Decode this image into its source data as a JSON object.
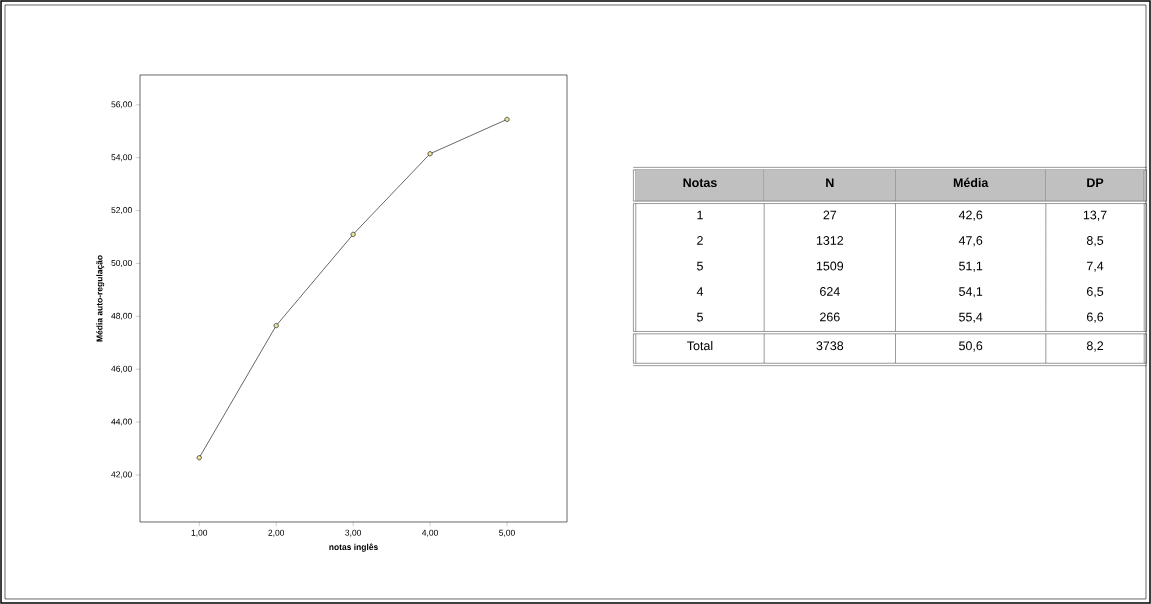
{
  "chart_data": [
    {
      "type": "line",
      "xlabel": "notas inglês",
      "ylabel": "Média auto-regulação",
      "x": [
        1,
        2,
        3,
        4,
        5
      ],
      "series": [
        {
          "color": "#000000",
          "values": [
            42.65,
            47.65,
            51.1,
            54.15,
            55.45
          ]
        }
      ],
      "marker": "circle",
      "line_style": "solid",
      "xlim": [
        0.23,
        5.78
      ],
      "ylim": [
        40.22,
        57.13
      ],
      "xticks": [
        {
          "value": 1,
          "label": "1,00"
        },
        {
          "value": 2,
          "label": "2,00"
        },
        {
          "value": 3,
          "label": "3,00"
        },
        {
          "value": 4,
          "label": "4,00"
        },
        {
          "value": 5,
          "label": "5,00"
        }
      ],
      "yticks": [
        {
          "value": 42,
          "label": "42,00"
        },
        {
          "value": 44,
          "label": "44,00"
        },
        {
          "value": 46,
          "label": "46,00"
        },
        {
          "value": 48,
          "label": "48,00"
        },
        {
          "value": 50,
          "label": "50,00"
        },
        {
          "value": 52,
          "label": "52,00"
        },
        {
          "value": 54,
          "label": "54,00"
        },
        {
          "value": 56,
          "label": "56,00"
        }
      ]
    },
    {
      "type": "other",
      "annotations": [
        "Notas",
        "N",
        "Média",
        "DP",
        "1",
        "27",
        "42,6",
        "13,7",
        "2",
        "1312",
        "47,6",
        "8,5",
        "5",
        "1509",
        "51,1",
        "7,4",
        "4",
        "624",
        "54,1",
        "6,5",
        "5",
        "266",
        "55,4",
        "6,6",
        "Total",
        "3738",
        "50,6",
        "8,2"
      ]
    }
  ]
}
